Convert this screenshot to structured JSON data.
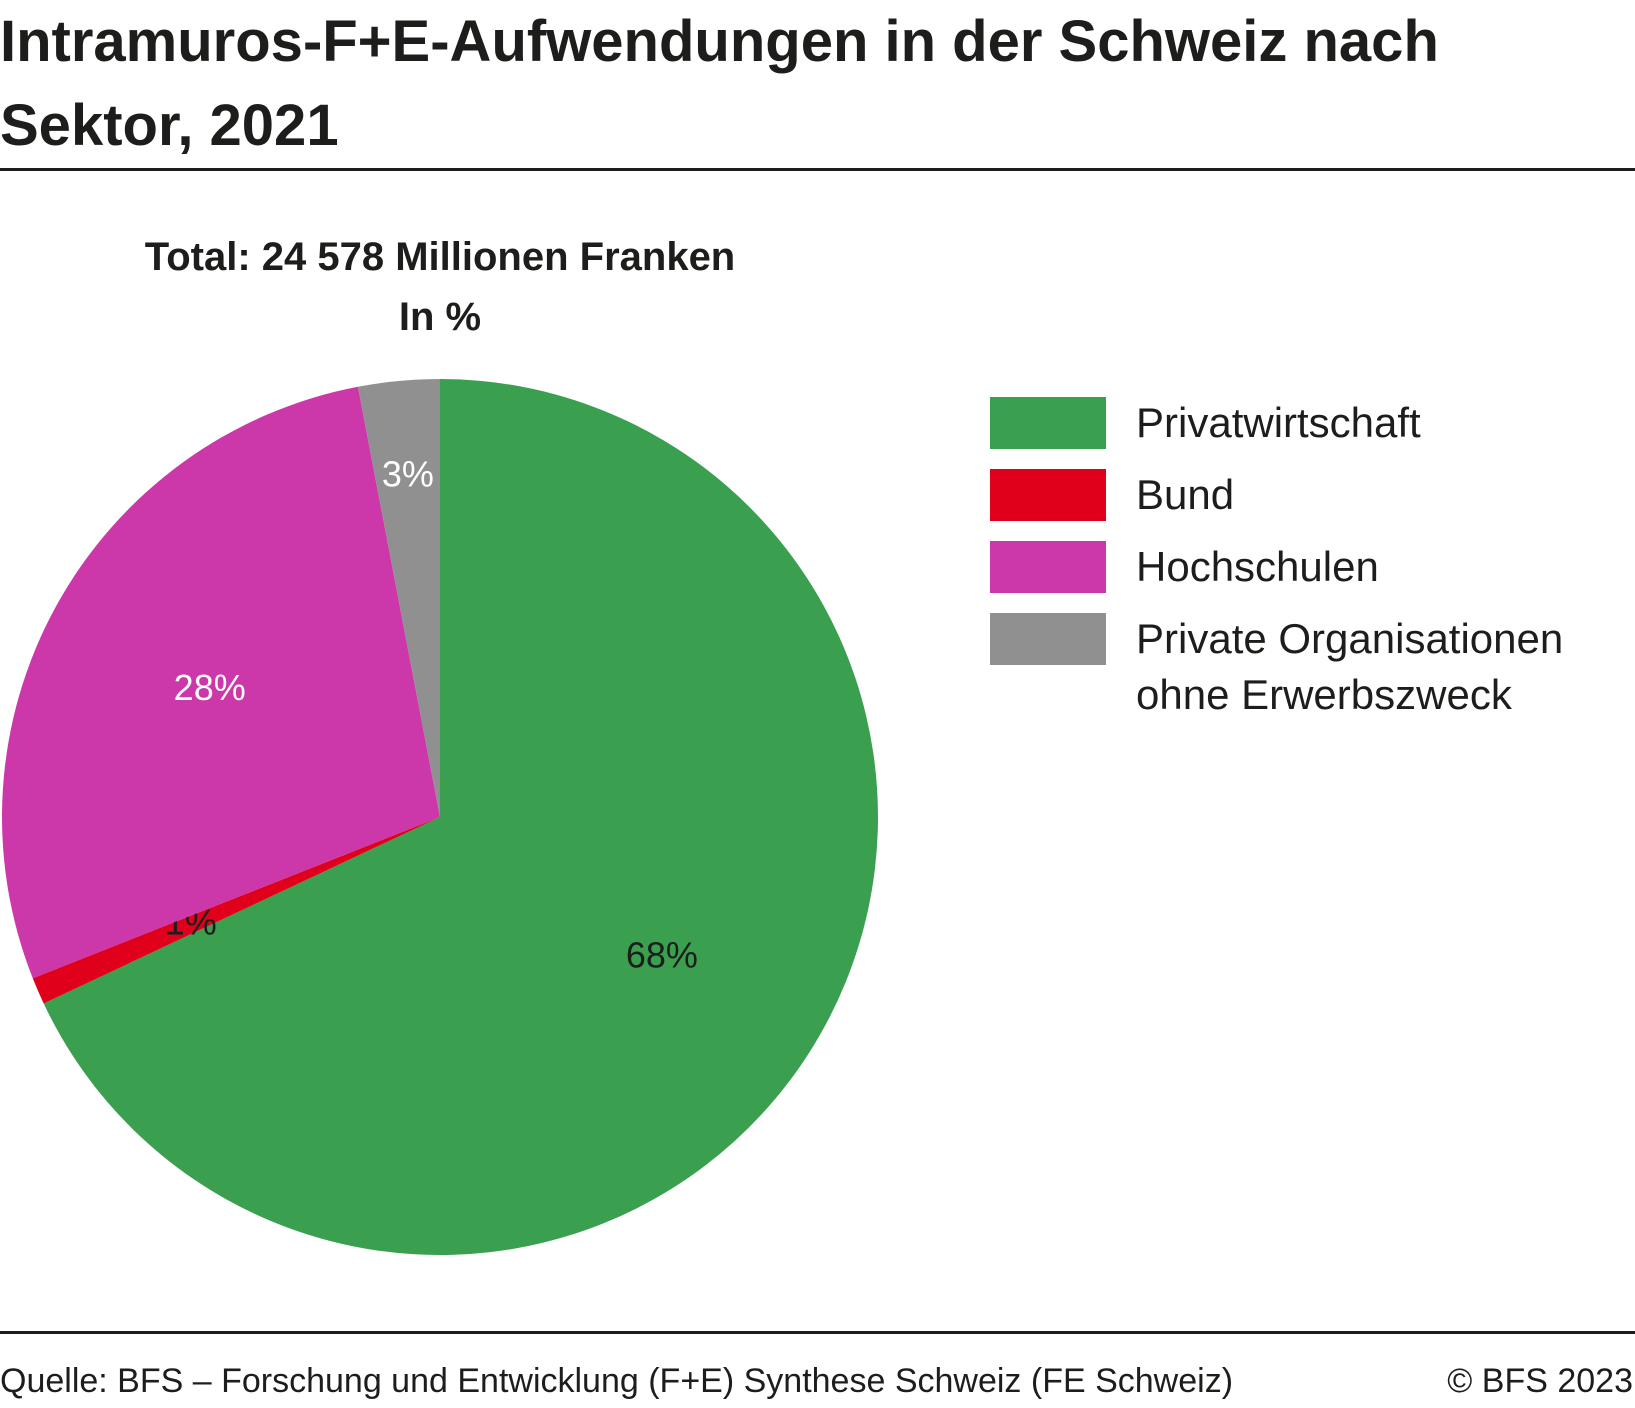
{
  "title": "Intramuros-F+E-Aufwendungen in der Schweiz nach Sektor, 2021",
  "subtitle_total": "Total: 24 578 Millionen Franken",
  "subtitle_unit": "In %",
  "source": "Quelle: BFS – Forschung und Entwicklung (F+E) Synthese Schweiz (FE Schweiz)",
  "copyright": "© BFS 2023",
  "chart_data": {
    "type": "pie",
    "title": "Intramuros-F+E-Aufwendungen in der Schweiz nach Sektor, 2021",
    "subtitle": "Total: 24 578 Millionen Franken",
    "unit": "In %",
    "legend_position": "right",
    "slices": [
      {
        "label": "Privatwirtschaft",
        "value": 68,
        "display": "68%",
        "color": "#3aa050",
        "label_color": "#1d1d1b"
      },
      {
        "label": "Bund",
        "value": 1,
        "display": "1%",
        "color": "#e0001b",
        "label_color": "#1d1d1b"
      },
      {
        "label": "Hochschulen",
        "value": 28,
        "display": "28%",
        "color": "#cc37a9",
        "label_color": "#ffffff"
      },
      {
        "label": "Private Organisationen ohne Erwerbszweck",
        "value": 3,
        "display": "3%",
        "color": "#909090",
        "label_color": "#ffffff"
      }
    ]
  },
  "legend": {
    "items": [
      {
        "label": "Privatwirtschaft",
        "color": "#3aa050"
      },
      {
        "label": "Bund",
        "color": "#e0001b"
      },
      {
        "label": "Hochschulen",
        "color": "#cc37a9"
      },
      {
        "label": "Private Organisationen ohne Erwerbszweck",
        "color": "#909090"
      }
    ]
  }
}
